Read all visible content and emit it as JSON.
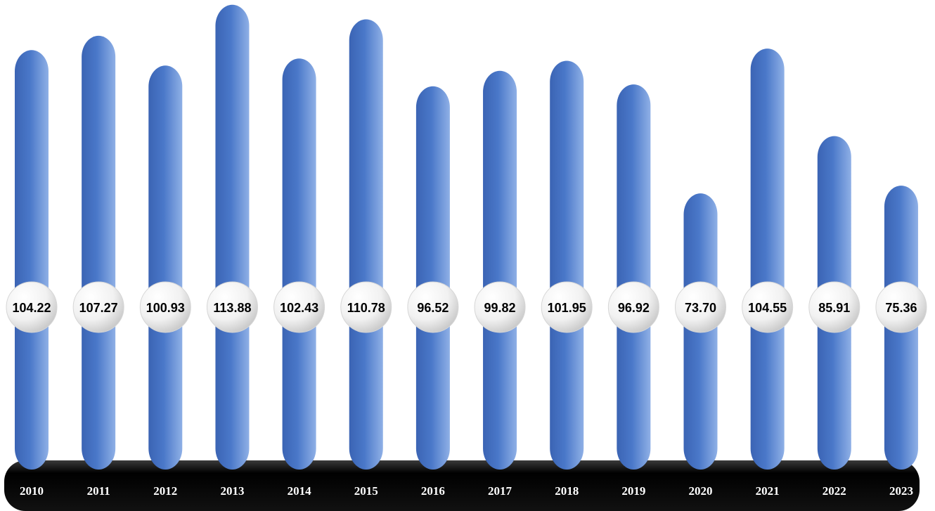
{
  "chart_data": {
    "type": "bar",
    "title": "",
    "xlabel": "",
    "ylabel": "",
    "categories": [
      "2010",
      "2011",
      "2012",
      "2013",
      "2014",
      "2015",
      "2016",
      "2017",
      "2018",
      "2019",
      "2020",
      "2021",
      "2022",
      "2023"
    ],
    "values": [
      104.22,
      107.27,
      100.93,
      113.88,
      102.43,
      110.78,
      96.52,
      99.82,
      101.95,
      96.92,
      73.7,
      104.55,
      85.91,
      75.36
    ],
    "value_labels": [
      "104.22",
      "107.27",
      "100.93",
      "113.88",
      "102.43",
      "110.78",
      "96.52",
      "99.82",
      "101.95",
      "96.92",
      "73.70",
      "104.55",
      "85.91",
      "75.36"
    ],
    "grid": false,
    "legend": "none",
    "colors": {
      "bar": "#4472c4",
      "axis_band": "#000000",
      "label_disc": "#ffffff"
    }
  }
}
